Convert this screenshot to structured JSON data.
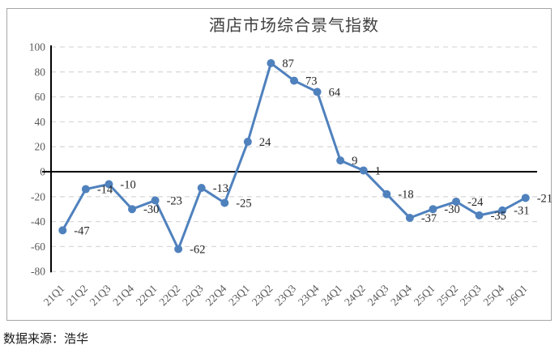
{
  "title": "酒店市场综合景气指数",
  "source_note": "数据来源：浩华",
  "chart_data": {
    "type": "line",
    "title": "酒店市场综合景气指数",
    "categories": [
      "21Q1",
      "21Q2",
      "21Q3",
      "21Q4",
      "22Q1",
      "22Q2",
      "22Q3",
      "22Q4",
      "23Q1",
      "23Q2",
      "23Q3",
      "23Q4",
      "24Q1",
      "24Q2",
      "24Q3",
      "24Q4",
      "25Q1",
      "25Q2",
      "25Q3",
      "25Q4",
      "26Q1"
    ],
    "values": [
      -47,
      -14,
      -10,
      -30,
      -23,
      -62,
      -13,
      -25,
      24,
      87,
      73,
      64,
      9,
      1,
      -18,
      -37,
      -30,
      -24,
      -35,
      -31,
      -21
    ],
    "yticks": [
      100,
      80,
      60,
      40,
      20,
      0,
      -20,
      -40,
      -60,
      -80
    ],
    "ylim": [
      -80,
      100
    ],
    "xlabel": "",
    "ylabel": "",
    "legend": "none",
    "grid": "horizontal-dashed",
    "data_labels": true,
    "colors": {
      "line": "#4f81bd",
      "marker": "#4f81bd",
      "gridline": "#d9d9d9",
      "axis_line": "#000000",
      "tick_label": "#595959",
      "data_label": "#262626",
      "frame_border": "#a6a6a6",
      "title_text": "#404040"
    }
  }
}
